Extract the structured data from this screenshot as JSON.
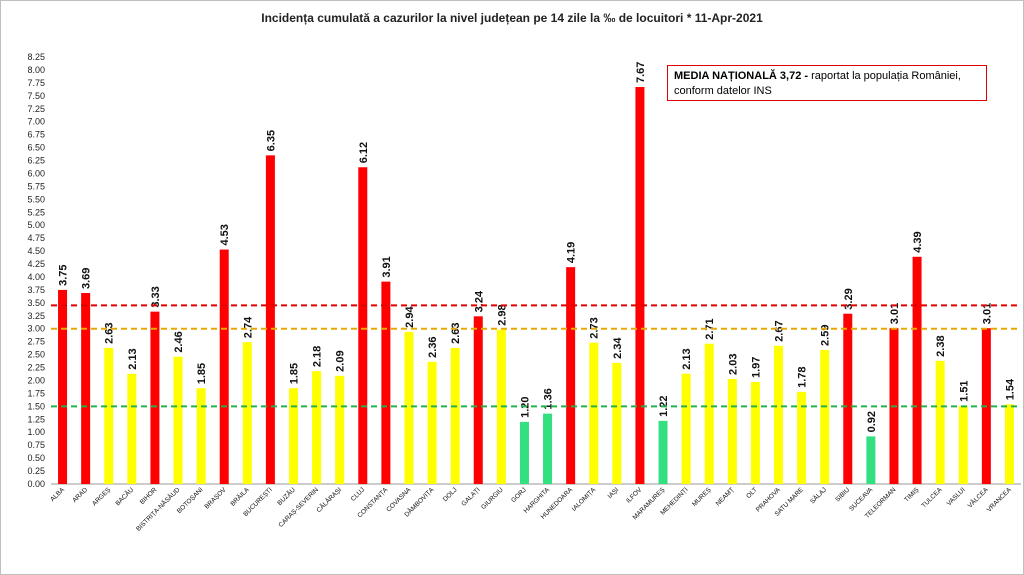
{
  "chart_data": {
    "type": "bar",
    "title": "Incidența cumulată a cazurilor la nivel județean pe 14 zile la ‰ de locuitori *   11-Apr-2021",
    "note_bold": "MEDIA NAȚIONALĂ  3,72 -",
    "note_rest": " raportat la populația României, conform datelor INS",
    "categories": [
      "ALBA",
      "ARAD",
      "ARGEȘ",
      "BACĂU",
      "BIHOR",
      "BISTRIȚA-NĂSĂUD",
      "BOTOȘANI",
      "BRAȘOV",
      "BRĂILA",
      "BUCUREȘTI",
      "BUZĂU",
      "CARAȘ-SEVERIN",
      "CĂLĂRAȘI",
      "CLUJ",
      "CONSTANȚA",
      "COVASNA",
      "DÂMBOVIȚA",
      "DOLJ",
      "GALAȚI",
      "GIURGIU",
      "GORJ",
      "HARGHITA",
      "HUNEDOARA",
      "IALOMIȚA",
      "IAȘI",
      "ILFOV",
      "MARAMUREȘ",
      "MEHEDINȚI",
      "MUREȘ",
      "NEAMȚ",
      "OLT",
      "PRAHOVA",
      "SATU MARE",
      "SĂLAJ",
      "SIBIU",
      "SUCEAVA",
      "TELEORMAN",
      "TIMIȘ",
      "TULCEA",
      "VASLUI",
      "VÂLCEA",
      "VRANCEA"
    ],
    "values": [
      3.75,
      3.69,
      2.63,
      2.13,
      3.33,
      2.46,
      1.85,
      4.53,
      2.74,
      6.35,
      1.85,
      2.18,
      2.09,
      6.12,
      3.91,
      2.94,
      2.36,
      2.63,
      3.24,
      2.98,
      1.2,
      1.36,
      4.19,
      2.73,
      2.34,
      7.67,
      1.22,
      2.13,
      2.71,
      2.03,
      1.97,
      2.67,
      1.78,
      2.59,
      3.29,
      0.92,
      3.01,
      4.39,
      2.38,
      1.51,
      3.01,
      1.54
    ],
    "value_labels": [
      "3.75",
      "3.69",
      "2.63",
      "2.13",
      "3.33",
      "2.46",
      "1.85",
      "4.53",
      "2.74",
      "6.35",
      "1.85",
      "2.18",
      "2.09",
      "6.12",
      "3.91",
      "2.94",
      "2.36",
      "2.63",
      "3.24",
      "2.98",
      "1.20",
      "1.36",
      "4.19",
      "2.73",
      "2.34",
      "7.67",
      "1.22",
      "2.13",
      "2.71",
      "2.03",
      "1.97",
      "2.67",
      "1.78",
      "2.59",
      "3.29",
      "0.92",
      "3.01",
      "4.39",
      "2.38",
      "1.51",
      "3.01",
      "1.54"
    ],
    "ylim": [
      0,
      8.25
    ],
    "yticks": [
      "0.00",
      "0.25",
      "0.50",
      "0.75",
      "1.00",
      "1.25",
      "1.50",
      "1.75",
      "2.00",
      "2.25",
      "2.50",
      "2.75",
      "3.00",
      "3.25",
      "3.50",
      "3.75",
      "4.00",
      "4.25",
      "4.50",
      "4.75",
      "5.00",
      "5.25",
      "5.50",
      "5.75",
      "6.00",
      "6.25",
      "6.50",
      "6.75",
      "7.00",
      "7.25",
      "7.50",
      "7.75",
      "8.00",
      "8.25"
    ],
    "thresholds": [
      {
        "value": 1.5,
        "color": "#22b14c"
      },
      {
        "value": 3.0,
        "color": "#e8a800"
      },
      {
        "value": 3.45,
        "color": "#e00000"
      }
    ],
    "colors": {
      "red": "#ff0000",
      "yellow": "#ffff00",
      "green": "#33e080"
    },
    "grid": false,
    "legend": "none"
  }
}
